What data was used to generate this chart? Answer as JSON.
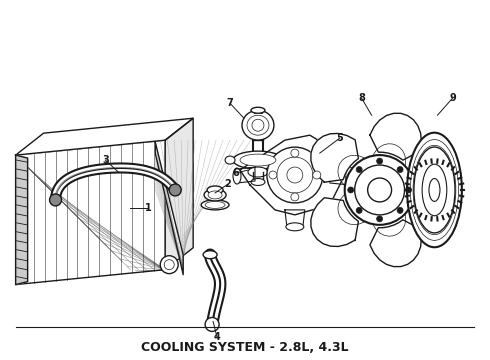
{
  "title": "COOLING SYSTEM - 2.8L, 4.3L",
  "title_fontsize": 9,
  "title_fontweight": "bold",
  "bg_color": "#ffffff",
  "line_color": "#1a1a1a",
  "fig_width": 4.9,
  "fig_height": 3.6,
  "dpi": 100
}
